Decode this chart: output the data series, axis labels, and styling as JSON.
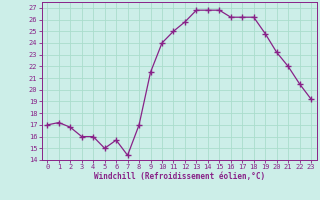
{
  "x": [
    0,
    1,
    2,
    3,
    4,
    5,
    6,
    7,
    8,
    9,
    10,
    11,
    12,
    13,
    14,
    15,
    16,
    17,
    18,
    19,
    20,
    21,
    22,
    23
  ],
  "y": [
    17,
    17.2,
    16.8,
    16,
    16,
    15,
    15.7,
    14.4,
    17,
    21.5,
    24,
    25,
    25.8,
    26.8,
    26.8,
    26.8,
    26.2,
    26.2,
    26.2,
    24.8,
    23.2,
    22,
    20.5,
    19.2
  ],
  "line_color": "#882288",
  "marker": "+",
  "bg_color": "#cceee8",
  "grid_color": "#aaddcc",
  "xlabel": "Windchill (Refroidissement éolien,°C)",
  "ylim": [
    14,
    27.5
  ],
  "xlim": [
    -0.5,
    23.5
  ],
  "yticks": [
    14,
    15,
    16,
    17,
    18,
    19,
    20,
    21,
    22,
    23,
    24,
    25,
    26,
    27
  ],
  "xticks": [
    0,
    1,
    2,
    3,
    4,
    5,
    6,
    7,
    8,
    9,
    10,
    11,
    12,
    13,
    14,
    15,
    16,
    17,
    18,
    19,
    20,
    21,
    22,
    23
  ],
  "tick_color": "#882288",
  "line_width": 0.9,
  "marker_size": 4,
  "marker_ew": 1.0
}
